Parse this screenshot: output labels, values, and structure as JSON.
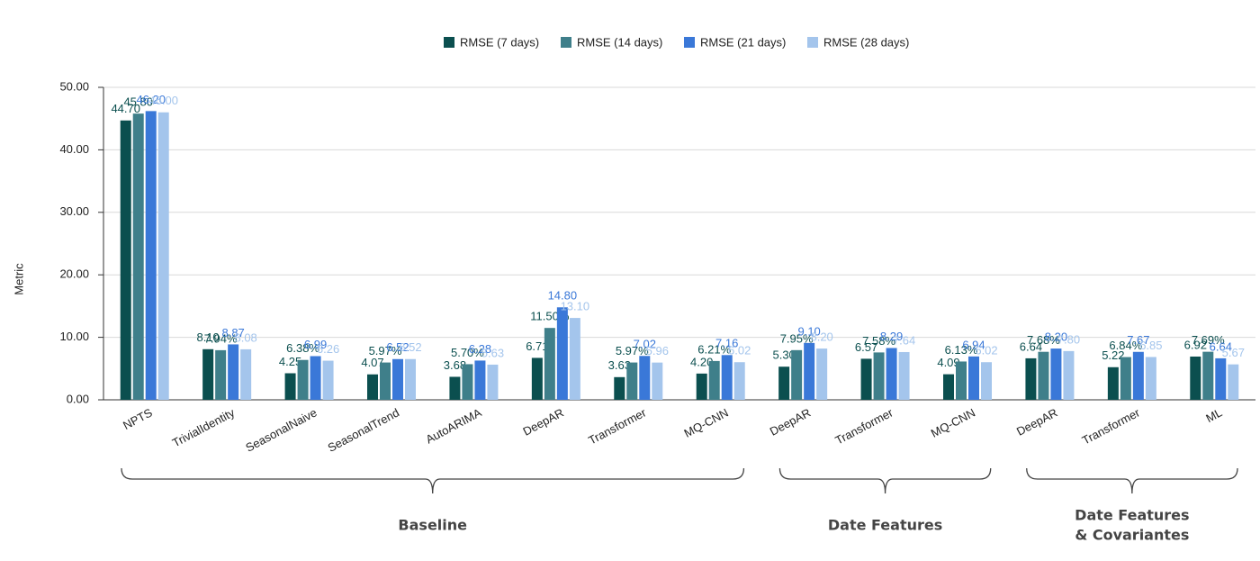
{
  "chart_data": {
    "type": "bar",
    "y_label": "Metric",
    "groups": [
      {
        "label": [
          "Baseline"
        ],
        "categories": [
          "NPTS",
          "TrivialIdentity",
          "SeasonalNaive",
          "SeasonalTrend",
          "AutoARIMA",
          "DeepAR",
          "Transformer",
          "MQ-CNN"
        ]
      },
      {
        "label": [
          "Date Features"
        ],
        "categories": [
          "DeepAR",
          "Transformer",
          "MQ-CNN"
        ]
      },
      {
        "label": [
          "Date Features",
          "& Covariantes"
        ],
        "categories": [
          "DeepAR",
          "Transformer",
          "ML"
        ]
      }
    ],
    "series": [
      {
        "name": "RMSE (7 days)",
        "color": "#0b4f4f",
        "values": [
          44.7,
          8.1,
          4.25,
          4.07,
          3.68,
          6.71,
          3.63,
          4.2,
          5.3,
          6.57,
          4.09,
          6.64,
          5.22,
          6.92
        ],
        "value_labels": [
          "44.70",
          "8.10",
          "4.25",
          "4.07",
          "3.68",
          "6.71",
          "3.63",
          "4.20",
          "5.30",
          "6.57",
          "4.09",
          "6.64",
          "5.22",
          "6.92"
        ]
      },
      {
        "name": "RMSE (14 days)",
        "color": "#3f7f8a",
        "values": [
          45.8,
          7.94,
          6.38,
          5.97,
          5.7,
          11.5,
          5.97,
          6.21,
          7.95,
          7.58,
          6.13,
          7.68,
          6.84,
          7.69
        ],
        "value_labels": [
          "45.80",
          "7.94%",
          "6.38%",
          "5.97%",
          "5.70%",
          "11.50%",
          "5.97%",
          "6.21%",
          "7.95%",
          "7.58%",
          "6.13%",
          "7.68%",
          "6.84%",
          "7.69%"
        ]
      },
      {
        "name": "RMSE (21 days)",
        "color": "#3a78d8",
        "values": [
          46.2,
          8.87,
          6.99,
          6.52,
          6.28,
          14.8,
          7.02,
          7.16,
          9.1,
          8.29,
          6.94,
          8.2,
          7.67,
          6.64
        ],
        "value_labels": [
          "46.20",
          "8.87",
          "6.99",
          "6.52",
          "6.28",
          "14.80",
          "7.02",
          "7.16",
          "9.10",
          "8.29",
          "6.94",
          "8.20",
          "7.67",
          "6.64"
        ]
      },
      {
        "name": "RMSE (28 days)",
        "color": "#a4c5ec",
        "values": [
          46.0,
          8.08,
          6.26,
          6.52,
          5.63,
          13.1,
          5.96,
          6.02,
          8.2,
          7.64,
          6.02,
          7.8,
          6.85,
          5.67
        ],
        "value_labels": [
          "46.00",
          "8.08",
          "6.26",
          "6.52",
          "5.63",
          "13.10",
          "5.96",
          "6.02",
          "8.20",
          "7.64",
          "6.02",
          "7.80",
          "6.85",
          "5.67"
        ]
      }
    ],
    "ylim": [
      0,
      50
    ],
    "yticks": [
      {
        "value": 0,
        "label": "0.00"
      },
      {
        "value": 10,
        "label": "10.00"
      },
      {
        "value": 20,
        "label": "20.00"
      },
      {
        "value": 30,
        "label": "30.00"
      },
      {
        "value": 40,
        "label": "40.00"
      },
      {
        "value": 50,
        "label": "50.00"
      }
    ],
    "grid": true,
    "legend": "top"
  }
}
